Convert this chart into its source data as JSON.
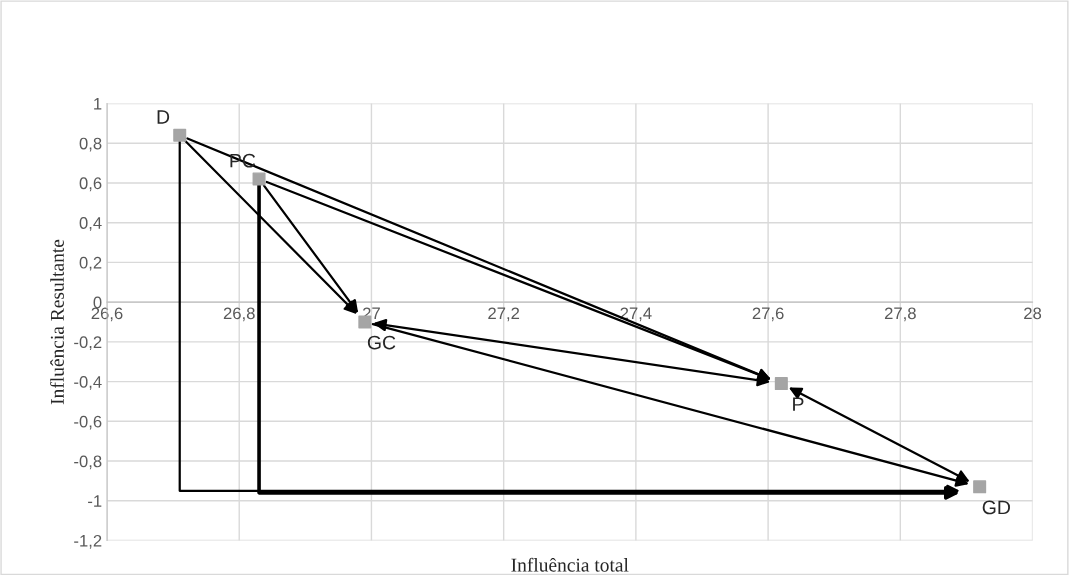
{
  "chart_data": {
    "type": "scatter",
    "xlabel": "Influência total",
    "ylabel": "Influência Resultante",
    "xlim": [
      26.6,
      28
    ],
    "ylim": [
      -1.2,
      1
    ],
    "xticks": [
      {
        "value": 26.6,
        "label": "26,6"
      },
      {
        "value": 26.8,
        "label": "26,8"
      },
      {
        "value": 27,
        "label": "27"
      },
      {
        "value": 27.2,
        "label": "27,2"
      },
      {
        "value": 27.4,
        "label": "27,4"
      },
      {
        "value": 27.6,
        "label": "27,6"
      },
      {
        "value": 27.8,
        "label": "27,8"
      },
      {
        "value": 28,
        "label": "28"
      }
    ],
    "yticks": [
      {
        "value": -1.2,
        "label": "-1,2"
      },
      {
        "value": -1,
        "label": "-1"
      },
      {
        "value": -0.8,
        "label": "-0,8"
      },
      {
        "value": -0.6,
        "label": "-0,6"
      },
      {
        "value": -0.4,
        "label": "-0,4"
      },
      {
        "value": -0.2,
        "label": "-0,2"
      },
      {
        "value": 0,
        "label": "0"
      },
      {
        "value": 0.2,
        "label": "0,2"
      },
      {
        "value": 0.4,
        "label": "0,4"
      },
      {
        "value": 0.6,
        "label": "0,6"
      },
      {
        "value": 0.8,
        "label": "0,8"
      },
      {
        "value": 1,
        "label": "1"
      }
    ],
    "grid": true,
    "marker": "square",
    "series": [
      {
        "color": "#a5a5a5",
        "x": [
          26.71,
          26.83,
          26.99,
          27.62,
          27.92
        ],
        "values": [
          0.84,
          0.62,
          -0.1,
          -0.41,
          -0.93
        ]
      }
    ],
    "annotations": [
      {
        "text": "D",
        "x": 26.71,
        "y": 0.84
      },
      {
        "text": "PC",
        "x": 26.83,
        "y": 0.62
      },
      {
        "text": "GC",
        "x": 26.99,
        "y": -0.1
      },
      {
        "text": "P",
        "x": 27.62,
        "y": -0.41
      },
      {
        "text": "GD",
        "x": 27.92,
        "y": -0.93
      }
    ]
  }
}
